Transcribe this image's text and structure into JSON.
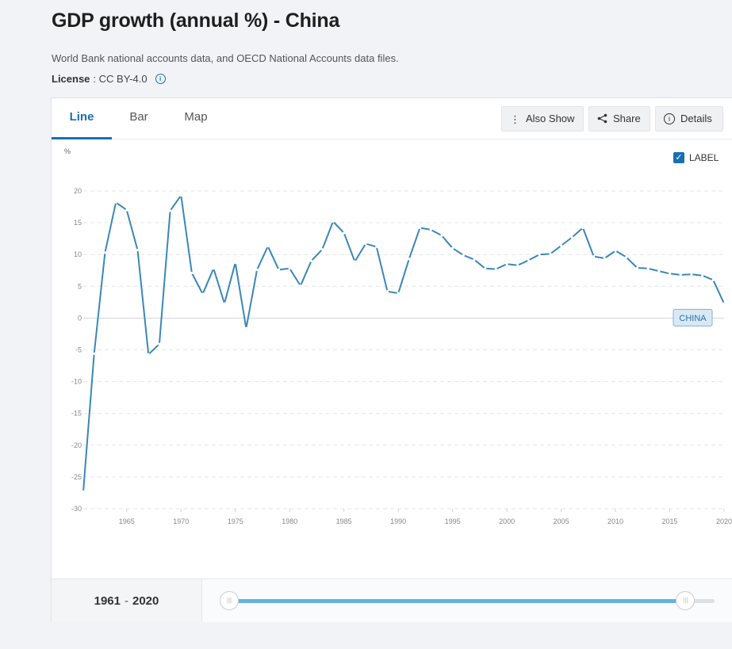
{
  "header": {
    "title": "GDP growth (annual %) - China",
    "source": "World Bank national accounts data, and OECD National Accounts data files.",
    "license_label": "License",
    "license_value": ": CC BY-4.0"
  },
  "tabs": [
    {
      "label": "Line",
      "active": true
    },
    {
      "label": "Bar",
      "active": false
    },
    {
      "label": "Map",
      "active": false
    }
  ],
  "toolbar": {
    "also_show": "Also Show",
    "share": "Share",
    "details": "Details"
  },
  "label_toggle": {
    "text": "LABEL",
    "checked": true
  },
  "range": {
    "start": "1961",
    "sep": "-",
    "end": "2020",
    "start_fraction": 0.0,
    "end_fraction": 1.0
  },
  "colors": {
    "line": "#3a87b8",
    "accent": "#1a6fb3",
    "slider": "#62b3e3"
  },
  "chart_data": {
    "type": "line",
    "ylabel": "%",
    "ylim": [
      -30,
      20
    ],
    "yticks": [
      20,
      15,
      10,
      5,
      0,
      -5,
      -10,
      -15,
      -20,
      -25,
      -30
    ],
    "xlim": [
      1961,
      2020
    ],
    "xticks": [
      1965,
      1970,
      1975,
      1980,
      1985,
      1990,
      1995,
      2000,
      2005,
      2010,
      2015,
      2020
    ],
    "grid": true,
    "series": [
      {
        "name": "CHINA",
        "x": [
          1961,
          1962,
          1963,
          1964,
          1965,
          1966,
          1967,
          1968,
          1969,
          1970,
          1971,
          1972,
          1973,
          1974,
          1975,
          1976,
          1977,
          1978,
          1979,
          1980,
          1981,
          1982,
          1983,
          1984,
          1985,
          1986,
          1987,
          1988,
          1989,
          1990,
          1991,
          1992,
          1993,
          1994,
          1995,
          1996,
          1997,
          1998,
          1999,
          2000,
          2001,
          2002,
          2003,
          2004,
          2005,
          2006,
          2007,
          2008,
          2009,
          2010,
          2011,
          2012,
          2013,
          2014,
          2015,
          2016,
          2017,
          2018,
          2019,
          2020
        ],
        "values": [
          -27.3,
          -5.6,
          10.3,
          18.2,
          17.0,
          10.7,
          -5.7,
          -4.1,
          16.9,
          19.3,
          7.1,
          3.8,
          7.8,
          2.3,
          8.7,
          -1.6,
          7.6,
          11.3,
          7.6,
          7.8,
          5.1,
          9.0,
          10.8,
          15.2,
          13.4,
          8.9,
          11.7,
          11.2,
          4.2,
          3.9,
          9.3,
          14.2,
          13.9,
          13.0,
          11.0,
          9.9,
          9.2,
          7.8,
          7.7,
          8.5,
          8.3,
          9.1,
          10.0,
          10.1,
          11.4,
          12.7,
          14.2,
          9.7,
          9.4,
          10.6,
          9.6,
          7.9,
          7.8,
          7.4,
          7.0,
          6.8,
          6.9,
          6.7,
          6.0,
          2.3
        ]
      }
    ]
  }
}
